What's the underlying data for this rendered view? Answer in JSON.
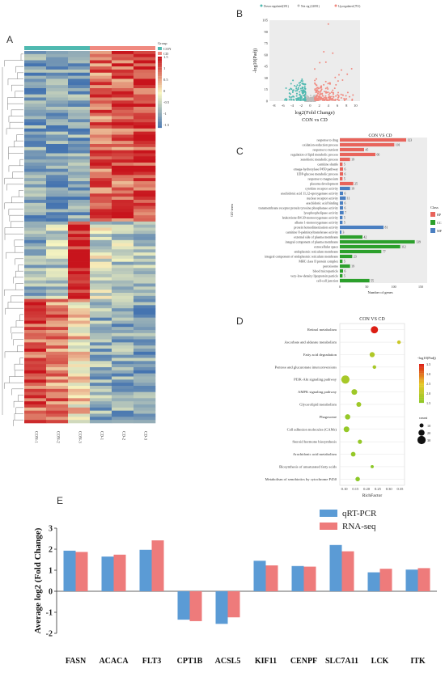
{
  "panels": {
    "a": "A",
    "b": "B",
    "c": "C",
    "d": "D",
    "e": "E"
  },
  "colors": {
    "con": "#4fb9b0",
    "cd": "#f08a80",
    "heat_low": "#4574b0",
    "heat_mid": "#f8f6c0",
    "heat_high": "#c8141c",
    "bp": "#e8645c",
    "cc": "#2ca02c",
    "mf": "#4a7fc1",
    "qrt": "#5b9bd5",
    "rnaseq": "#ee7b7b"
  },
  "chart_data": [
    {
      "panel": "A",
      "type": "heatmap",
      "group_title": "Group",
      "groups": [
        "CON",
        "CD"
      ],
      "samples": [
        "CON-1",
        "CON-2",
        "CON-3",
        "CD-1",
        "CD-2",
        "CD-3"
      ],
      "color_scale_ticks": [
        1.5,
        1,
        0.5,
        0,
        -0.5,
        -1,
        -1.5
      ]
    },
    {
      "panel": "B",
      "type": "scatter",
      "title": "CON vs CD",
      "xlabel": "log2(Fold Change)",
      "ylabel": "-log10(Padj)",
      "legend": [
        "Down regulated(391)",
        "Not sig (22091)",
        "Up regulated (701)"
      ],
      "xticks": [
        -8,
        -6,
        -4,
        -2,
        0,
        2,
        4,
        6,
        8,
        10
      ],
      "yticks": [
        0,
        15,
        30,
        45,
        60,
        75,
        90,
        105
      ],
      "xlim": [
        -9,
        11
      ],
      "ylim": [
        0,
        105
      ]
    },
    {
      "panel": "C",
      "type": "bar",
      "title": "CON VS CD",
      "xlabel": "Number of genes",
      "ylabel": "GO term",
      "legend_title": "Class",
      "legend": [
        "BP",
        "CC",
        "MF"
      ],
      "xticks": [
        0,
        50,
        100,
        150
      ],
      "xlim": [
        0,
        150
      ],
      "categories": [
        "response to drug",
        "oxidation-reduction process",
        "response to nutrient",
        "regulation of lipid metabolic process",
        "xenobiotic metabolic process",
        "carnitine shuttle",
        "omega-hydroxylase P450 pathway",
        "UDP-glucose metabolic process",
        "response to magnesium",
        "placenta development",
        "cytokine receptor activity",
        "arachidonic acid 11,12-epoxygenase activity",
        "nuclear receptor activity",
        "arachidonic acid binding",
        "transmembrane receptor protein tyrosine phosphatase activity",
        "lysophospholipase activity",
        "leukotriene-B4 20-monooxygenase activity",
        "alkane 1-monooxygenase activity",
        "protein homodimerization activity",
        "carnitine O-palmitoyltransferase activity",
        "external side of plasma membrane",
        "integral component of plasma membrane",
        "extracellular space",
        "endoplasmic reticulum membrane",
        "integral component of endoplasmic reticulum membrane",
        "MHC class II protein complex",
        "peroxisome",
        "blood microparticle",
        "very-low-density lipoprotein particle",
        "cell-cell junction"
      ],
      "values": [
        123,
        101,
        45,
        66,
        19,
        5,
        6,
        6,
        5,
        25,
        19,
        6,
        11,
        6,
        6,
        7,
        5,
        5,
        81,
        3,
        42,
        139,
        112,
        77,
        23,
        5,
        19,
        6,
        5,
        55
      ],
      "classes": [
        "BP",
        "BP",
        "BP",
        "BP",
        "BP",
        "BP",
        "BP",
        "BP",
        "BP",
        "BP",
        "MF",
        "MF",
        "MF",
        "MF",
        "MF",
        "MF",
        "MF",
        "MF",
        "MF",
        "MF",
        "CC",
        "CC",
        "CC",
        "CC",
        "CC",
        "CC",
        "CC",
        "CC",
        "CC",
        "CC"
      ]
    },
    {
      "panel": "D",
      "type": "scatter",
      "title": "CON VS CD",
      "xlabel": "RichFactor",
      "xticks": [
        0.1,
        0.15,
        0.2,
        0.25,
        0.3,
        0.35
      ],
      "xlim": [
        0.08,
        0.37
      ],
      "color_title": "-log10(Padj)",
      "color_ticks": [
        3.5,
        3.0,
        2.5,
        2.0,
        1.5
      ],
      "size_title": "count",
      "size_ticks": [
        10,
        20,
        30
      ],
      "categories": [
        "Retinol metabolism",
        "Ascorbate and aldarate metabolism",
        "Fatty acid degradation",
        "Pentose and glucuronate interconversions",
        "PI3K-Akt signaling pathway",
        "AMPK signaling pathway",
        "Glycerolipid metabolism",
        "Phagosome",
        "Cell adhesion molecules (CAMs)",
        "Steroid hormone biosynthesis",
        "Arachidonic acid metabolism",
        "Biosynthesis of unsaturated fatty acids",
        "Metabolism of xenobiotics by cytochrome P450"
      ],
      "x": [
        0.235,
        0.345,
        0.225,
        0.235,
        0.105,
        0.145,
        0.165,
        0.115,
        0.11,
        0.17,
        0.14,
        0.225,
        0.16
      ],
      "padj": [
        3.5,
        2.2,
        1.9,
        1.8,
        1.8,
        1.7,
        1.7,
        1.6,
        1.6,
        1.6,
        1.6,
        1.5,
        1.5
      ],
      "count": [
        25,
        8,
        15,
        8,
        30,
        18,
        14,
        16,
        18,
        11,
        13,
        6,
        12
      ]
    },
    {
      "panel": "E",
      "type": "bar",
      "ylabel": "Average log2 (Fold Change)",
      "ylim": [
        -2,
        3
      ],
      "yticks": [
        -2,
        -1,
        0,
        1,
        2,
        3
      ],
      "categories": [
        "FASN",
        "ACACA",
        "FLT3",
        "CPT1B",
        "ACSL5",
        "KIF11",
        "CENPF",
        "SLC7A11",
        "LCK",
        "ITK"
      ],
      "series": [
        {
          "name": "qRT-PCR",
          "values": [
            1.93,
            1.65,
            1.97,
            -1.35,
            -1.55,
            1.45,
            1.2,
            2.2,
            0.9,
            1.03
          ]
        },
        {
          "name": "RNA-seq",
          "values": [
            1.87,
            1.74,
            2.42,
            -1.42,
            -1.24,
            1.23,
            1.17,
            1.9,
            1.07,
            1.1
          ]
        }
      ]
    }
  ]
}
